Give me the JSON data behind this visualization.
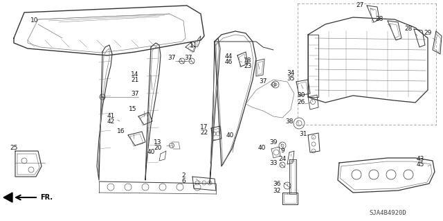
{
  "background_color": "#f5f5f0",
  "diagram_code": "SJA4B4920D",
  "label_color": "#111111",
  "font_size": 6.5,
  "line_color": "#333333",
  "line_color_light": "#777777"
}
